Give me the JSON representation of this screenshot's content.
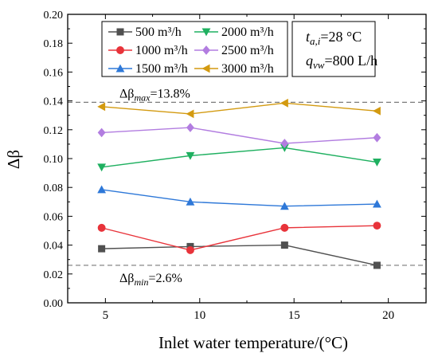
{
  "chart_data": {
    "type": "line",
    "title": "",
    "xlabel": "Inlet water temperature/(°C)",
    "ylabel": "Δβ",
    "xlim": [
      3,
      22
    ],
    "ylim": [
      0,
      0.2
    ],
    "xticks": [
      5,
      10,
      15,
      20
    ],
    "yticks": [
      0.0,
      0.02,
      0.04,
      0.06,
      0.08,
      0.1,
      0.12,
      0.14,
      0.16,
      0.18,
      0.2
    ],
    "ytick_labels": [
      "0.00",
      "0.02",
      "0.04",
      "0.06",
      "0.08",
      "0.10",
      "0.12",
      "0.14",
      "0.16",
      "0.18",
      "0.20"
    ],
    "x": [
      4.8,
      9.5,
      14.5,
      19.4
    ],
    "series": [
      {
        "name": "500 m³/h",
        "marker": "square",
        "color": "#505050",
        "values": [
          0.0375,
          0.039,
          0.04,
          0.026
        ]
      },
      {
        "name": "1000 m³/h",
        "marker": "circle",
        "color": "#e8333a",
        "values": [
          0.052,
          0.0365,
          0.052,
          0.0535
        ]
      },
      {
        "name": "1500 m³/h",
        "marker": "triangle-up",
        "color": "#2e78d8",
        "values": [
          0.0785,
          0.07,
          0.067,
          0.0685
        ]
      },
      {
        "name": "2000 m³/h",
        "marker": "triangle-down",
        "color": "#1fb060",
        "values": [
          0.094,
          0.102,
          0.1075,
          0.0975
        ]
      },
      {
        "name": "2500 m³/h",
        "marker": "diamond",
        "color": "#b27de0",
        "values": [
          0.118,
          0.1215,
          0.1105,
          0.1145
        ]
      },
      {
        "name": "3000 m³/h",
        "marker": "triangle-left",
        "color": "#d39a10",
        "values": [
          0.136,
          0.131,
          0.1385,
          0.133
        ]
      }
    ],
    "reference_lines": [
      {
        "y": 0.139,
        "label_main": "Δβ",
        "label_sub": "max",
        "label_rest": "=13.8%"
      },
      {
        "y": 0.026,
        "label_main": "Δβ",
        "label_sub": "min",
        "label_rest": "=2.6%"
      }
    ],
    "legend_position": "top",
    "grid": false,
    "conditions": [
      {
        "var": "t",
        "sub": "a,i",
        "rest": "=28 °C"
      },
      {
        "var": "q",
        "sub": "vw",
        "rest": "=800 L/h"
      }
    ]
  }
}
